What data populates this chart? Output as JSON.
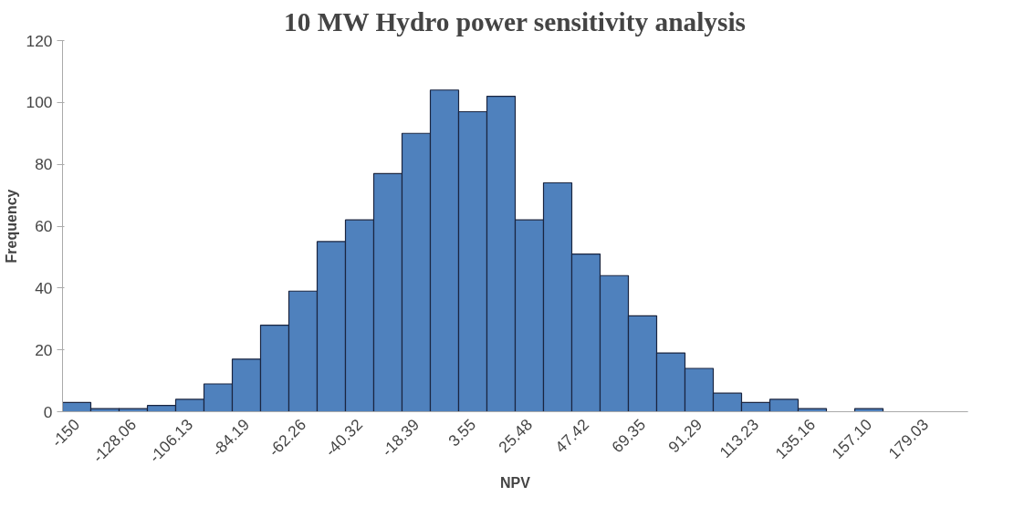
{
  "chart_data": {
    "type": "bar",
    "title": "10 MW Hydro power sensitivity analysis",
    "xlabel": "NPV",
    "ylabel": "Frequency",
    "categories": [
      "-150",
      null,
      "-128.06",
      null,
      "-106.13",
      null,
      "-84.19",
      null,
      "-62.26",
      null,
      "-40.32",
      null,
      "-18.39",
      null,
      "3.55",
      null,
      "25.48",
      null,
      "47.42",
      null,
      "69.35",
      null,
      "91.29",
      null,
      "113.23",
      null,
      "135.16",
      null,
      "157.10",
      null,
      "179.03",
      null
    ],
    "values": [
      3,
      1,
      1,
      2,
      4,
      9,
      17,
      28,
      39,
      55,
      62,
      77,
      90,
      104,
      97,
      102,
      62,
      74,
      51,
      44,
      31,
      19,
      14,
      6,
      3,
      4,
      1,
      0,
      1,
      0,
      0,
      0
    ],
    "color": "#4f81bd",
    "ylim": [
      0,
      120
    ],
    "yticks": [
      0,
      20,
      40,
      60,
      80,
      100,
      120
    ],
    "grid": false
  }
}
